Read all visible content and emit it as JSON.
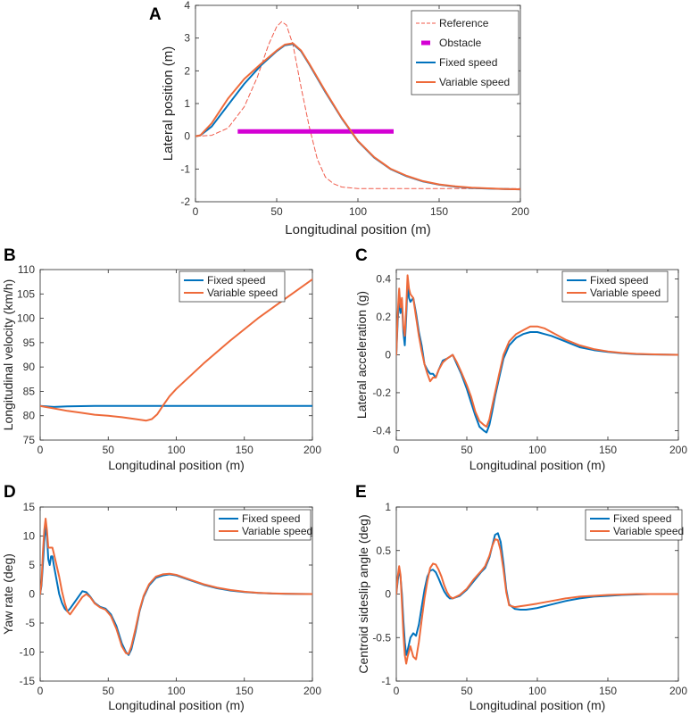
{
  "colors": {
    "fixed": "#0072BD",
    "variable": "#EE6A3A",
    "reference": "#F05A4A",
    "obstacle": "#D400D4"
  },
  "chart_data": [
    {
      "id": "A",
      "panel_label": "A",
      "type": "line",
      "xlabel": "Longitudinal position (m)",
      "ylabel": "Lateral position (m)",
      "xlim": [
        0,
        200
      ],
      "ylim": [
        -2,
        4
      ],
      "xticks": [
        0,
        50,
        100,
        150,
        200
      ],
      "yticks": [
        -2,
        -1,
        0,
        1,
        2,
        3,
        4
      ],
      "legend": "top-right",
      "series": [
        {
          "name": "Reference",
          "style": "dashed",
          "color": "reference",
          "x": [
            0,
            10,
            20,
            30,
            38,
            45,
            50,
            53,
            56,
            60,
            65,
            70,
            75,
            80,
            85,
            90,
            100,
            120,
            150,
            200
          ],
          "y": [
            0,
            0.03,
            0.25,
            0.9,
            1.8,
            2.8,
            3.35,
            3.5,
            3.4,
            2.8,
            1.5,
            0.3,
            -0.7,
            -1.25,
            -1.45,
            -1.55,
            -1.6,
            -1.6,
            -1.6,
            -1.6
          ]
        },
        {
          "name": "Obstacle",
          "style": "thick",
          "color": "obstacle",
          "x": [
            26,
            122
          ],
          "y": [
            0.15,
            0.15
          ]
        },
        {
          "name": "Fixed speed",
          "style": "solid",
          "color": "fixed",
          "x": [
            0,
            3,
            10,
            20,
            30,
            40,
            50,
            55,
            60,
            65,
            70,
            80,
            90,
            100,
            110,
            120,
            130,
            140,
            150,
            160,
            170,
            180,
            190,
            200
          ],
          "y": [
            0,
            0.03,
            0.3,
            0.95,
            1.6,
            2.15,
            2.6,
            2.78,
            2.82,
            2.6,
            2.2,
            1.35,
            0.55,
            -0.15,
            -0.65,
            -1.0,
            -1.22,
            -1.38,
            -1.48,
            -1.54,
            -1.58,
            -1.6,
            -1.61,
            -1.62
          ]
        },
        {
          "name": "Variable speed",
          "style": "solid",
          "color": "variable",
          "x": [
            0,
            3,
            10,
            20,
            30,
            40,
            50,
            55,
            60,
            65,
            70,
            80,
            90,
            100,
            110,
            120,
            130,
            140,
            150,
            160,
            170,
            180,
            190,
            200
          ],
          "y": [
            0,
            0.03,
            0.4,
            1.15,
            1.75,
            2.2,
            2.62,
            2.8,
            2.84,
            2.62,
            2.22,
            1.37,
            0.56,
            -0.14,
            -0.64,
            -0.99,
            -1.21,
            -1.37,
            -1.47,
            -1.53,
            -1.57,
            -1.59,
            -1.61,
            -1.62
          ]
        }
      ]
    },
    {
      "id": "B",
      "panel_label": "B",
      "type": "line",
      "xlabel": "Longitudinal position (m)",
      "ylabel": "Longitudinal velocity (km/h)",
      "xlim": [
        0,
        200
      ],
      "ylim": [
        75,
        110
      ],
      "xticks": [
        0,
        50,
        100,
        150,
        200
      ],
      "yticks": [
        75,
        80,
        85,
        90,
        95,
        100,
        105,
        110
      ],
      "legend": "top-right",
      "series": [
        {
          "name": "Fixed speed",
          "style": "solid",
          "color": "fixed",
          "x": [
            0,
            10,
            20,
            40,
            60,
            80,
            100,
            150,
            200
          ],
          "y": [
            82,
            81.8,
            81.9,
            82,
            82,
            82,
            82,
            82,
            82
          ]
        },
        {
          "name": "Variable speed",
          "style": "solid",
          "color": "variable",
          "x": [
            0,
            10,
            20,
            30,
            40,
            50,
            60,
            70,
            78,
            82,
            86,
            90,
            95,
            100,
            120,
            140,
            160,
            180,
            200
          ],
          "y": [
            82,
            81.5,
            81,
            80.6,
            80.2,
            80,
            79.7,
            79.3,
            79,
            79.3,
            80.3,
            82,
            84,
            85.5,
            90.7,
            95.5,
            100,
            104,
            108
          ]
        }
      ]
    },
    {
      "id": "C",
      "panel_label": "C",
      "type": "line",
      "xlabel": "Longitudinal position (m)",
      "ylabel": "Lateral acceleration (g)",
      "xlim": [
        0,
        200
      ],
      "ylim": [
        -0.45,
        0.45
      ],
      "xticks": [
        0,
        50,
        100,
        150,
        200
      ],
      "yticks": [
        -0.4,
        -0.2,
        0,
        0.2,
        0.4
      ],
      "legend": "top-right",
      "series": [
        {
          "name": "Fixed speed",
          "style": "solid",
          "color": "fixed",
          "x": [
            0,
            1,
            2,
            3,
            4,
            5,
            6,
            7,
            8,
            9,
            10,
            12,
            14,
            16,
            18,
            20,
            22,
            24,
            26,
            28,
            30,
            33,
            36,
            40,
            43,
            46,
            50,
            53,
            56,
            59,
            62,
            64,
            66,
            68,
            70,
            73,
            76,
            80,
            85,
            90,
            95,
            100,
            105,
            110,
            120,
            130,
            140,
            150,
            160,
            170,
            180,
            190,
            200
          ],
          "y": [
            0,
            0.18,
            0.3,
            0.22,
            0.28,
            0.12,
            0.05,
            0.2,
            0.38,
            0.3,
            0.28,
            0.3,
            0.22,
            0.12,
            0.05,
            -0.05,
            -0.08,
            -0.1,
            -0.1,
            -0.12,
            -0.08,
            -0.03,
            -0.02,
            0,
            -0.05,
            -0.1,
            -0.18,
            -0.25,
            -0.32,
            -0.38,
            -0.4,
            -0.41,
            -0.37,
            -0.3,
            -0.22,
            -0.12,
            -0.02,
            0.05,
            0.09,
            0.11,
            0.12,
            0.12,
            0.11,
            0.1,
            0.07,
            0.04,
            0.025,
            0.015,
            0.008,
            0.004,
            0.002,
            0.001,
            0
          ]
        },
        {
          "name": "Variable speed",
          "style": "solid",
          "color": "variable",
          "x": [
            0,
            1,
            2,
            3,
            4,
            5,
            6,
            7,
            8,
            9,
            10,
            12,
            14,
            16,
            18,
            20,
            22,
            24,
            26,
            28,
            30,
            33,
            36,
            40,
            43,
            46,
            50,
            53,
            56,
            59,
            62,
            64,
            66,
            68,
            70,
            73,
            76,
            80,
            85,
            90,
            95,
            100,
            105,
            110,
            120,
            130,
            140,
            150,
            160,
            170,
            180,
            190,
            200
          ],
          "y": [
            0,
            0.22,
            0.35,
            0.25,
            0.3,
            0.15,
            0.1,
            0.25,
            0.42,
            0.35,
            0.32,
            0.3,
            0.2,
            0.1,
            0.02,
            -0.05,
            -0.1,
            -0.14,
            -0.12,
            -0.12,
            -0.08,
            -0.04,
            -0.02,
            0,
            -0.04,
            -0.09,
            -0.16,
            -0.22,
            -0.3,
            -0.35,
            -0.37,
            -0.38,
            -0.34,
            -0.27,
            -0.2,
            -0.1,
            0,
            0.07,
            0.11,
            0.13,
            0.15,
            0.15,
            0.14,
            0.12,
            0.08,
            0.05,
            0.03,
            0.018,
            0.01,
            0.005,
            0.003,
            0.001,
            0
          ]
        }
      ]
    },
    {
      "id": "D",
      "panel_label": "D",
      "type": "line",
      "xlabel": "Longitudinal position (m)",
      "ylabel": "Yaw rate (deg)",
      "xlim": [
        0,
        200
      ],
      "ylim": [
        -15,
        15
      ],
      "xticks": [
        0,
        50,
        100,
        150,
        200
      ],
      "yticks": [
        -15,
        -10,
        -5,
        0,
        5,
        10,
        15
      ],
      "legend": "top-right",
      "series": [
        {
          "name": "Fixed speed",
          "style": "solid",
          "color": "fixed",
          "x": [
            0,
            1,
            2,
            3,
            4,
            5,
            6,
            7,
            8,
            9,
            10,
            12,
            14,
            16,
            18,
            20,
            22,
            25,
            28,
            31,
            34,
            37,
            40,
            44,
            48,
            52,
            56,
            60,
            63,
            65,
            67,
            70,
            73,
            76,
            80,
            85,
            90,
            95,
            100,
            110,
            120,
            130,
            140,
            150,
            160,
            170,
            180,
            190,
            200
          ],
          "y": [
            0,
            1.5,
            5,
            9,
            11.5,
            10,
            6,
            5,
            6.5,
            6.5,
            5,
            2.5,
            0,
            -1.5,
            -2.5,
            -3,
            -2.5,
            -1.5,
            -0.5,
            0.5,
            0.3,
            -0.5,
            -1.5,
            -2.2,
            -2.5,
            -3.5,
            -5.5,
            -8.5,
            -10,
            -10.5,
            -9.5,
            -6.5,
            -3,
            -0.5,
            1.5,
            2.8,
            3.2,
            3.4,
            3.2,
            2.4,
            1.6,
            1,
            0.6,
            0.35,
            0.2,
            0.1,
            0.05,
            0.02,
            0
          ]
        },
        {
          "name": "Variable speed",
          "style": "solid",
          "color": "variable",
          "x": [
            0,
            1,
            2,
            3,
            4,
            5,
            6,
            7,
            8,
            9,
            10,
            12,
            14,
            16,
            18,
            20,
            22,
            25,
            28,
            31,
            34,
            37,
            40,
            44,
            48,
            52,
            56,
            60,
            63,
            65,
            67,
            70,
            73,
            76,
            80,
            85,
            90,
            95,
            100,
            110,
            120,
            130,
            140,
            150,
            160,
            170,
            180,
            190,
            200
          ],
          "y": [
            0,
            2,
            7,
            11,
            13,
            11,
            8,
            8,
            8,
            8,
            7,
            5,
            3,
            0.5,
            -1.5,
            -3,
            -3.5,
            -2.5,
            -1.5,
            -0.5,
            0,
            -0.6,
            -1.6,
            -2.3,
            -2.7,
            -3.8,
            -6,
            -9,
            -10.2,
            -10.3,
            -9,
            -6,
            -2.8,
            -0.3,
            1.7,
            3,
            3.4,
            3.5,
            3.3,
            2.5,
            1.7,
            1.1,
            0.7,
            0.4,
            0.22,
            0.12,
            0.06,
            0.02,
            0
          ]
        }
      ]
    },
    {
      "id": "E",
      "panel_label": "E",
      "type": "line",
      "xlabel": "Longitudinal position (m)",
      "ylabel": "Centroid sideslip angle (deg)",
      "xlim": [
        0,
        200
      ],
      "ylim": [
        -1,
        1
      ],
      "xticks": [
        0,
        50,
        100,
        150,
        200
      ],
      "yticks": [
        -1,
        -0.5,
        0,
        0.5,
        1
      ],
      "legend": "top-right",
      "series": [
        {
          "name": "Fixed speed",
          "style": "solid",
          "color": "fixed",
          "x": [
            0,
            1,
            2,
            3,
            4,
            5,
            6,
            7,
            8,
            10,
            12,
            14,
            16,
            18,
            20,
            22,
            24,
            26,
            28,
            30,
            32,
            34,
            36,
            38,
            40,
            45,
            50,
            55,
            60,
            63,
            66,
            68,
            70,
            72,
            74,
            76,
            78,
            80,
            84,
            88,
            92,
            96,
            100,
            110,
            120,
            130,
            140,
            150,
            160,
            170,
            180,
            190,
            200
          ],
          "y": [
            0,
            0.15,
            0.28,
            0.2,
            0,
            -0.3,
            -0.55,
            -0.7,
            -0.65,
            -0.5,
            -0.45,
            -0.48,
            -0.35,
            -0.15,
            0.05,
            0.2,
            0.27,
            0.28,
            0.25,
            0.18,
            0.1,
            0.03,
            -0.02,
            -0.05,
            -0.05,
            -0.02,
            0.05,
            0.15,
            0.25,
            0.3,
            0.42,
            0.55,
            0.68,
            0.7,
            0.6,
            0.35,
            0.05,
            -0.12,
            -0.17,
            -0.18,
            -0.18,
            -0.17,
            -0.16,
            -0.12,
            -0.08,
            -0.05,
            -0.03,
            -0.02,
            -0.01,
            -0.005,
            0,
            0,
            0
          ]
        },
        {
          "name": "Variable speed",
          "style": "solid",
          "color": "variable",
          "x": [
            0,
            1,
            2,
            3,
            4,
            5,
            6,
            7,
            8,
            10,
            12,
            14,
            16,
            18,
            20,
            22,
            24,
            26,
            28,
            30,
            32,
            34,
            36,
            38,
            40,
            45,
            50,
            55,
            60,
            63,
            66,
            68,
            70,
            72,
            74,
            76,
            78,
            80,
            84,
            88,
            92,
            96,
            100,
            110,
            120,
            130,
            140,
            150,
            160,
            170,
            180,
            190,
            200
          ],
          "y": [
            0,
            0.2,
            0.32,
            0.22,
            -0.1,
            -0.45,
            -0.7,
            -0.8,
            -0.72,
            -0.6,
            -0.72,
            -0.75,
            -0.55,
            -0.3,
            -0.05,
            0.15,
            0.3,
            0.35,
            0.34,
            0.28,
            0.2,
            0.1,
            0.02,
            -0.03,
            -0.05,
            -0.01,
            0.06,
            0.17,
            0.26,
            0.32,
            0.44,
            0.55,
            0.63,
            0.62,
            0.5,
            0.28,
            0.02,
            -0.13,
            -0.15,
            -0.14,
            -0.13,
            -0.12,
            -0.11,
            -0.08,
            -0.05,
            -0.03,
            -0.02,
            -0.01,
            -0.005,
            0,
            0,
            0,
            0
          ]
        }
      ]
    }
  ]
}
